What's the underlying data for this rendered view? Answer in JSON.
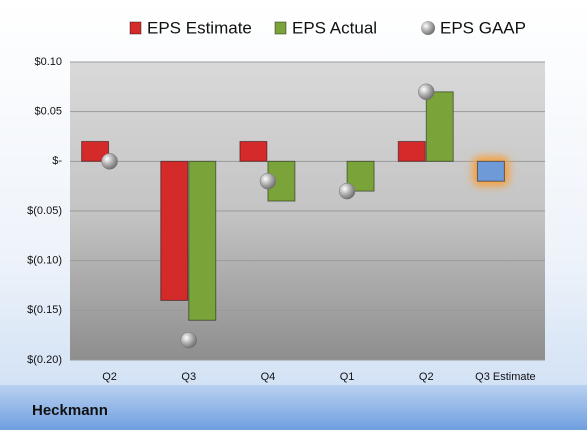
{
  "chart_data": {
    "type": "bar",
    "footer": "Heckmann",
    "categories": [
      "Q2",
      "Q3",
      "Q4",
      "Q1",
      "Q2",
      "Q3 Estimate"
    ],
    "series": [
      {
        "name": "EPS Estimate",
        "color": "#d42a2a",
        "point_colors": [
          "#d42a2a",
          "#d42a2a",
          "#d42a2a",
          "#d42a2a",
          "#d42a2a",
          "#6f9ad8"
        ],
        "values": [
          0.02,
          -0.14,
          0.02,
          null,
          0.02,
          -0.02
        ]
      },
      {
        "name": "EPS Actual",
        "color": "#7aa33a",
        "values": [
          null,
          -0.16,
          -0.04,
          -0.03,
          0.07,
          null
        ]
      },
      {
        "name": "EPS GAAP",
        "color": "#a8a8a8",
        "marker": "sphere",
        "values": [
          0,
          -0.18,
          -0.02,
          -0.03,
          0.07,
          null
        ]
      }
    ],
    "ylim": [
      -0.2,
      0.1
    ],
    "yticks": [
      {
        "value": -0.2,
        "label": "$(0.20)"
      },
      {
        "value": -0.15,
        "label": "$(0.15)"
      },
      {
        "value": -0.1,
        "label": "$(0.10)"
      },
      {
        "value": -0.05,
        "label": "$(0.05)"
      },
      {
        "value": 0,
        "label": "$-"
      },
      {
        "value": 0.05,
        "label": "$0.05"
      },
      {
        "value": 0.1,
        "label": "$0.10"
      }
    ],
    "grid": true
  }
}
